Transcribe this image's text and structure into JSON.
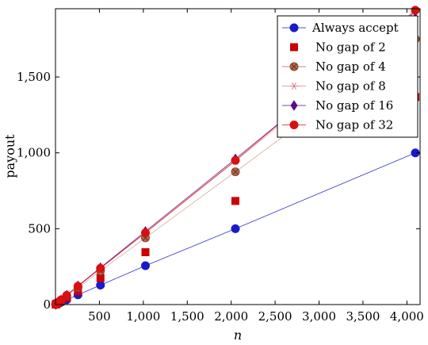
{
  "chart_data": {
    "type": "line",
    "xlabel": "n",
    "ylabel": "payout",
    "xlim": [
      0,
      4150
    ],
    "ylim": [
      0,
      1950
    ],
    "x_ticks": [
      500,
      1000,
      1500,
      2000,
      2500,
      3000,
      3500,
      4000
    ],
    "x_tick_labels": [
      "500",
      "1,000",
      "1,500",
      "2,000",
      "2,500",
      "3,000",
      "3,500",
      "4,000"
    ],
    "y_ticks": [
      0,
      500,
      1000,
      1500
    ],
    "y_tick_labels": [
      "0",
      "500",
      "1,000",
      "1,500"
    ],
    "legend_position": "top-right",
    "grid": false,
    "x": [
      2,
      4,
      8,
      16,
      32,
      64,
      128,
      256,
      512,
      1024,
      2048,
      4096
    ],
    "series": [
      {
        "name": "Always accept",
        "color": "#1a1acc",
        "marker": "circle",
        "line": true,
        "values": [
          0.5,
          1,
          2,
          4,
          8,
          16,
          32,
          64,
          128,
          256,
          500,
          1000
        ]
      },
      {
        "name": "No gap of 2",
        "color": "#cc0000",
        "marker": "square",
        "line": false,
        "values": [
          0.7,
          1.3,
          3,
          6,
          11,
          22,
          44,
          88,
          175,
          345,
          683,
          1368
        ]
      },
      {
        "name": "No gap of 4",
        "color": "#b5684a",
        "marker": "circled-x",
        "line": true,
        "values": [
          1,
          2,
          4,
          8,
          15,
          29,
          57,
          112,
          222,
          440,
          875,
          1750
        ]
      },
      {
        "name": "No gap of 8",
        "color": "#d4808c",
        "marker": "asterisk",
        "line": true,
        "values": [
          1,
          2,
          4,
          8,
          16,
          31,
          62,
          122,
          240,
          475,
          945,
          1900
        ]
      },
      {
        "name": "No gap of 16",
        "color": "#5a0a8a",
        "marker": "diamond",
        "line": true,
        "values": [
          1,
          2,
          4,
          8,
          16,
          31,
          62,
          123,
          243,
          482,
          960,
          1930
        ]
      },
      {
        "name": "No gap of 32",
        "color": "#d81010",
        "marker": "circle",
        "line": true,
        "values": [
          1,
          2,
          4,
          8,
          16,
          31,
          61,
          121,
          239,
          473,
          950,
          1940
        ]
      }
    ]
  }
}
